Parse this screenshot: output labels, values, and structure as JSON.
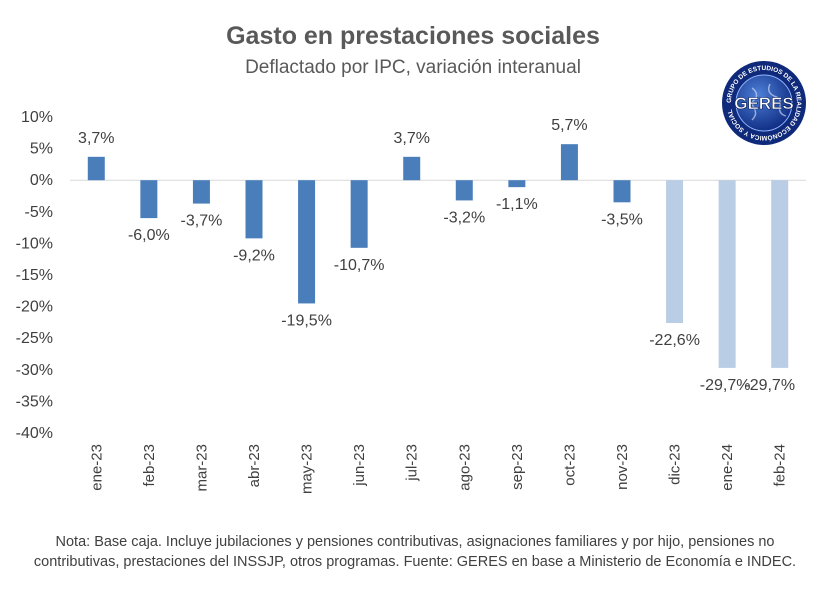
{
  "logo_text": "GERES",
  "logo_ring_text": "GRUPO DE ESTUDIOS DE LA REALIDAD ECONÓMICA Y SOCIAL",
  "note": "Nota: Base caja. Incluye jubilaciones y pensiones contributivas, asignaciones familiares y por hijo, pensiones no contributivas, prestaciones del INSSJP, otros programas. Fuente: GERES en base a Ministerio de Economía e INDEC.",
  "chart_data": {
    "type": "bar",
    "title": "Gasto en prestaciones sociales",
    "subtitle": "Deflactado por IPC, variación interanual",
    "xlabel": "",
    "ylabel": "",
    "ylim": [
      -40,
      10
    ],
    "yticks": [
      10,
      5,
      0,
      -5,
      -10,
      -15,
      -20,
      -25,
      -30,
      -35,
      -40
    ],
    "ytick_labels": [
      "10%",
      "5%",
      "0%",
      "-5%",
      "-10%",
      "-15%",
      "-20%",
      "-25%",
      "-30%",
      "-35%",
      "-40%"
    ],
    "grid": false,
    "categories": [
      "ene-23",
      "feb-23",
      "mar-23",
      "abr-23",
      "may-23",
      "jun-23",
      "jul-23",
      "ago-23",
      "sep-23",
      "oct-23",
      "nov-23",
      "dic-23",
      "ene-24",
      "feb-24"
    ],
    "values": [
      3.7,
      -6.0,
      -3.7,
      -9.2,
      -19.5,
      -10.7,
      3.7,
      -3.2,
      -1.1,
      5.7,
      -3.5,
      -22.6,
      -29.7,
      -29.7
    ],
    "data_labels": [
      "3,7%",
      "-6,0%",
      "-3,7%",
      "-9,2%",
      "-19,5%",
      "-10,7%",
      "3,7%",
      "-3,2%",
      "-1,1%",
      "5,7%",
      "-3,5%",
      "-22,6%",
      "-29,7%",
      "-29,7%"
    ],
    "colors": {
      "primary": "#4a7ebb",
      "highlight": "#b9cde5"
    },
    "highlighted_categories": [
      "dic-23",
      "ene-24",
      "feb-24"
    ]
  }
}
